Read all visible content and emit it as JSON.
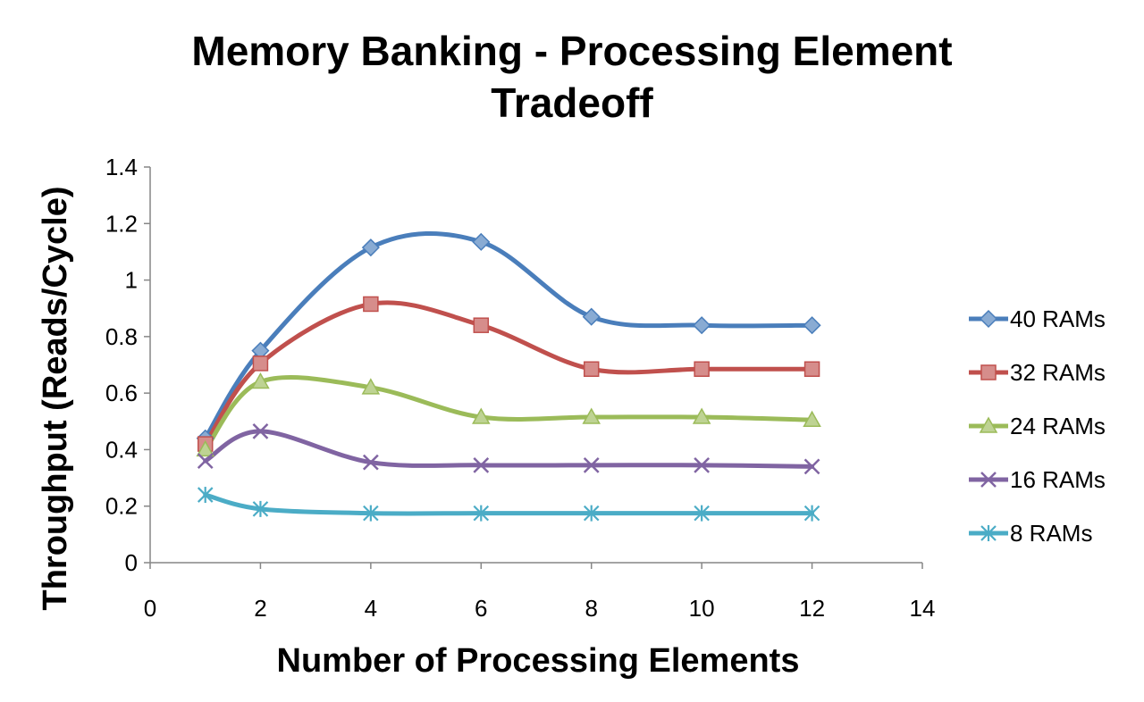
{
  "chart_data": {
    "type": "line",
    "title_line1": "Memory Banking - Processing Element",
    "title_line2": "Tradeoff",
    "xlabel": "Number of Processing Elements",
    "ylabel": "Throughput (Reads/Cycle)",
    "xlim": [
      0,
      14
    ],
    "ylim": [
      0,
      1.4
    ],
    "xticks": [
      0,
      2,
      4,
      6,
      8,
      10,
      12,
      14
    ],
    "yticks": [
      0,
      0.2,
      0.4,
      0.6,
      0.8,
      1,
      1.2,
      1.4
    ],
    "xtick_labels": [
      "0",
      "2",
      "4",
      "6",
      "8",
      "10",
      "12",
      "14"
    ],
    "ytick_labels": [
      "0",
      "0.2",
      "0.4",
      "0.6",
      "0.8",
      "1",
      "1.2",
      "1.4"
    ],
    "grid": false,
    "smooth": true,
    "legend_position": "right",
    "x": [
      1,
      2,
      4,
      6,
      8,
      10,
      12
    ],
    "series": [
      {
        "name": "40 RAMs",
        "color": "#4a7ebb",
        "marker": "diamond",
        "values": [
          0.44,
          0.75,
          1.115,
          1.135,
          0.87,
          0.84,
          0.84
        ]
      },
      {
        "name": "32 RAMs",
        "color": "#c0504d",
        "marker": "square",
        "values": [
          0.42,
          0.705,
          0.915,
          0.84,
          0.685,
          0.685,
          0.685
        ]
      },
      {
        "name": "24 RAMs",
        "color": "#9bbb59",
        "marker": "triangle",
        "values": [
          0.4,
          0.64,
          0.62,
          0.515,
          0.515,
          0.515,
          0.505
        ]
      },
      {
        "name": "16 RAMs",
        "color": "#8064a2",
        "marker": "x",
        "values": [
          0.36,
          0.465,
          0.355,
          0.345,
          0.345,
          0.345,
          0.34
        ]
      },
      {
        "name": "8 RAMs",
        "color": "#4bacc6",
        "marker": "star",
        "values": [
          0.24,
          0.19,
          0.175,
          0.175,
          0.175,
          0.175,
          0.175
        ]
      }
    ]
  }
}
